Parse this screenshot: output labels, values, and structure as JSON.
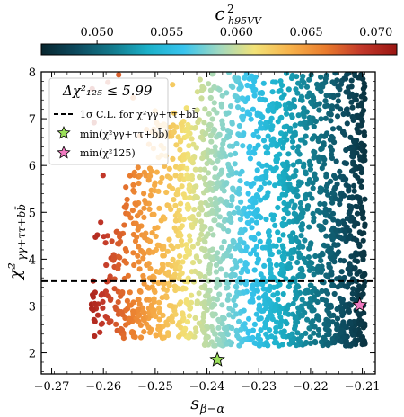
{
  "chart_data": {
    "type": "scatter",
    "colorbar": {
      "label_base": "c",
      "label_sup": "2",
      "label_sub": "h95VV",
      "range": [
        0.046,
        0.0715
      ],
      "ticks": [
        0.05,
        0.055,
        0.06,
        0.065,
        0.07
      ],
      "tick_labels": [
        "0.050",
        "0.055",
        "0.060",
        "0.065",
        "0.070"
      ],
      "colormap": [
        "#08262f",
        "#0d4a5e",
        "#137a8c",
        "#1bb0c8",
        "#38c4ee",
        "#9fd8c0",
        "#f2e277",
        "#f7b24a",
        "#e97b2d",
        "#c2382a",
        "#9a1612"
      ]
    },
    "xlabel": "s",
    "xlabel_sub": "β−α",
    "ylabel": "χ²",
    "ylabel_sub": "γγ+ττ+bb̄",
    "xlim": [
      -0.272,
      -0.2075
    ],
    "ylim": [
      1.55,
      8.0
    ],
    "xticks": [
      -0.27,
      -0.26,
      -0.25,
      -0.24,
      -0.23,
      -0.22,
      -0.21
    ],
    "xtick_labels": [
      "−0.27",
      "−0.26",
      "−0.25",
      "−0.24",
      "−0.23",
      "−0.22",
      "−0.21"
    ],
    "yticks": [
      2,
      3,
      4,
      5,
      6,
      7,
      8
    ],
    "ytick_labels": [
      "2",
      "3",
      "4",
      "5",
      "6",
      "7",
      "8"
    ],
    "hline": {
      "y": 3.53,
      "style": "dashed"
    },
    "legend": {
      "position": "top-left",
      "title": "Δχ²₁₂₅ ≤ 5.99",
      "entries": [
        {
          "marker": "dashed-line",
          "label": "1σ C.L. for χ²γγ+ττ+bb̄"
        },
        {
          "marker": "star",
          "color": "#9be05a",
          "label": "min(χ²γγ+ττ+bb̄)"
        },
        {
          "marker": "star",
          "color": "#f07ac0",
          "label": "min(χ²125)"
        }
      ]
    },
    "special_points": [
      {
        "name": "min-chi2-ggttbb",
        "x": -0.238,
        "y": 1.85,
        "color": "#9be05a"
      },
      {
        "name": "min-chi2-125",
        "x": -0.2105,
        "y": 3.02,
        "color": "#f07ac0"
      }
    ],
    "scatter_generation": {
      "count": 2600,
      "seed": 7,
      "x_edge_min": -0.2625,
      "x_edge_max": -0.2095,
      "y_min": 2.15,
      "y_max": 8.0,
      "color_low": 0.047,
      "color_high": 0.0705
    }
  }
}
